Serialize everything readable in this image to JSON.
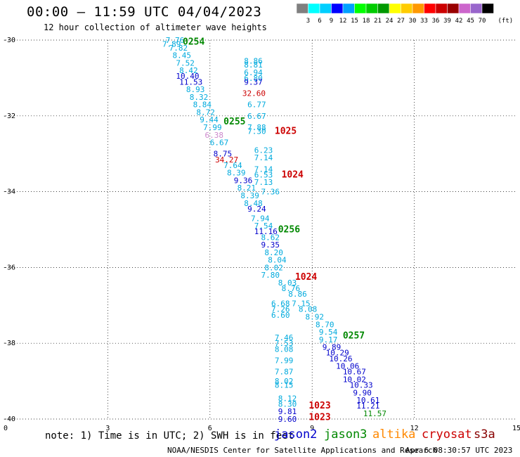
{
  "title": "00:00 – 11:59 UTC 04/04/2023",
  "subtitle": "12 hour collection of altimeter wave heights",
  "note": "note: 1) Time is in UTC; 2) SWH is in feet",
  "satellites": [
    {
      "name": "jason2",
      "color": "#0000cc"
    },
    {
      "name": "jason3",
      "color": "#008800"
    },
    {
      "name": "altika",
      "color": "#ff8800"
    },
    {
      "name": "cryosat",
      "color": "#cc0000"
    },
    {
      "name": "s3a",
      "color": "#880000"
    }
  ],
  "credit": "NOAA/NESDIS Center for Satellite Applications and Research",
  "timestamp": "Apr  6 08:30:57 UTC 2023",
  "colorbar": {
    "unit": "(ft)",
    "labels": [
      "3",
      "6",
      "9",
      "12",
      "15",
      "18",
      "21",
      "24",
      "27",
      "30",
      "33",
      "36",
      "39",
      "42",
      "45",
      "70"
    ],
    "colors": [
      "#7f7f7f",
      "#00ffff",
      "#00cfff",
      "#0000ff",
      "#00a0ff",
      "#00ff00",
      "#00cc00",
      "#009900",
      "#ffff00",
      "#ffcc00",
      "#ff9900",
      "#ff0000",
      "#cc0000",
      "#990000",
      "#cc66cc",
      "#9966cc",
      "#000000"
    ]
  },
  "chart_data": {
    "type": "scatter",
    "xlim": [
      0,
      15
    ],
    "ylim": [
      -40,
      -30
    ],
    "x_ticks": [
      0,
      3,
      6,
      9,
      12,
      15
    ],
    "y_ticks": [
      -30,
      -32,
      -34,
      -36,
      -38,
      -40
    ],
    "grid": true,
    "series": [
      {
        "name": "swh_labels",
        "points": [
          {
            "x": 4.7,
            "y": -30.0,
            "label": "7.76",
            "color": "#00aadd"
          },
          {
            "x": 4.6,
            "y": -30.1,
            "label": "7.89",
            "color": "#00aadd"
          },
          {
            "x": 4.8,
            "y": -30.2,
            "label": "7.82",
            "color": "#00aadd"
          },
          {
            "x": 4.9,
            "y": -30.4,
            "label": "8.45",
            "color": "#00aadd"
          },
          {
            "x": 5.0,
            "y": -30.6,
            "label": "7.52",
            "color": "#00aadd"
          },
          {
            "x": 5.1,
            "y": -30.8,
            "label": "8.42",
            "color": "#00aadd"
          },
          {
            "x": 5.0,
            "y": -30.95,
            "label": "10.40",
            "color": "#0000cc"
          },
          {
            "x": 5.1,
            "y": -31.1,
            "label": "11.53",
            "color": "#0000cc"
          },
          {
            "x": 5.3,
            "y": -31.3,
            "label": "8.93",
            "color": "#00aadd"
          },
          {
            "x": 5.4,
            "y": -31.5,
            "label": "8.32",
            "color": "#00aadd"
          },
          {
            "x": 5.5,
            "y": -31.7,
            "label": "8.84",
            "color": "#00aadd"
          },
          {
            "x": 5.6,
            "y": -31.9,
            "label": "8.72",
            "color": "#00aadd"
          },
          {
            "x": 5.7,
            "y": -32.1,
            "label": "9.44",
            "color": "#00aadd"
          },
          {
            "x": 5.8,
            "y": -32.3,
            "label": "7.99",
            "color": "#00aadd"
          },
          {
            "x": 5.85,
            "y": -32.5,
            "label": "6.38",
            "color": "#cc88cc"
          },
          {
            "x": 6.0,
            "y": -32.7,
            "label": "6.67",
            "color": "#00aadd"
          },
          {
            "x": 6.1,
            "y": -33.0,
            "label": "8.75",
            "color": "#0000cc"
          },
          {
            "x": 6.15,
            "y": -33.15,
            "label": "34.27",
            "color": "#cc0000"
          },
          {
            "x": 6.4,
            "y": -33.3,
            "label": "7.64",
            "color": "#00aadd"
          },
          {
            "x": 6.5,
            "y": -33.5,
            "label": "8.39",
            "color": "#00aadd"
          },
          {
            "x": 6.7,
            "y": -33.7,
            "label": "9.36",
            "color": "#0000cc"
          },
          {
            "x": 6.8,
            "y": -33.9,
            "label": "8.21",
            "color": "#00aadd"
          },
          {
            "x": 6.9,
            "y": -34.1,
            "label": "8.39",
            "color": "#00aadd"
          },
          {
            "x": 7.0,
            "y": -34.3,
            "label": "8.48",
            "color": "#00aadd"
          },
          {
            "x": 7.1,
            "y": -34.45,
            "label": "9.24",
            "color": "#0000cc"
          },
          {
            "x": 7.2,
            "y": -34.7,
            "label": "7.94",
            "color": "#00aadd"
          },
          {
            "x": 7.3,
            "y": -34.9,
            "label": "7.54",
            "color": "#00aadd"
          },
          {
            "x": 7.3,
            "y": -35.05,
            "label": "11.16",
            "color": "#0000cc"
          },
          {
            "x": 7.5,
            "y": -35.2,
            "label": "8.62",
            "color": "#00aadd"
          },
          {
            "x": 7.5,
            "y": -35.4,
            "label": "9.35",
            "color": "#0000cc"
          },
          {
            "x": 7.6,
            "y": -35.6,
            "label": "8.20",
            "color": "#00aadd"
          },
          {
            "x": 7.7,
            "y": -35.8,
            "label": "8.04",
            "color": "#00aadd"
          },
          {
            "x": 7.6,
            "y": -36.0,
            "label": "8.02",
            "color": "#00aadd"
          },
          {
            "x": 7.5,
            "y": -36.2,
            "label": "7.80",
            "color": "#00aadd"
          },
          {
            "x": 8.0,
            "y": -36.4,
            "label": "8.03",
            "color": "#00aadd"
          },
          {
            "x": 8.1,
            "y": -36.55,
            "label": "8.76",
            "color": "#00aadd"
          },
          {
            "x": 8.3,
            "y": -36.7,
            "label": "8.86",
            "color": "#00aadd"
          },
          {
            "x": 7.8,
            "y": -36.95,
            "label": "6.68",
            "color": "#00aadd"
          },
          {
            "x": 8.4,
            "y": -36.95,
            "label": "7.15",
            "color": "#00aadd"
          },
          {
            "x": 7.8,
            "y": -37.1,
            "label": "7.26",
            "color": "#00aadd"
          },
          {
            "x": 8.6,
            "y": -37.1,
            "label": "8.08",
            "color": "#00aadd"
          },
          {
            "x": 7.8,
            "y": -37.25,
            "label": "6.60",
            "color": "#00aadd"
          },
          {
            "x": 8.8,
            "y": -37.3,
            "label": "8.92",
            "color": "#00aadd"
          },
          {
            "x": 9.1,
            "y": -37.5,
            "label": "8.70",
            "color": "#00aadd"
          },
          {
            "x": 9.2,
            "y": -37.7,
            "label": "9.54",
            "color": "#00aadd"
          },
          {
            "x": 9.2,
            "y": -37.9,
            "label": "9.17",
            "color": "#00aadd"
          },
          {
            "x": 7.9,
            "y": -37.85,
            "label": "7.46",
            "color": "#00aadd"
          },
          {
            "x": 7.9,
            "y": -38.0,
            "label": "7.53",
            "color": "#00aadd"
          },
          {
            "x": 7.9,
            "y": -38.15,
            "label": "8.08",
            "color": "#00aadd"
          },
          {
            "x": 9.3,
            "y": -38.1,
            "label": "9.89",
            "color": "#0000cc"
          },
          {
            "x": 9.4,
            "y": -38.25,
            "label": "10.29",
            "color": "#0000cc"
          },
          {
            "x": 9.5,
            "y": -38.4,
            "label": "10.26",
            "color": "#0000cc"
          },
          {
            "x": 7.9,
            "y": -38.45,
            "label": "7.99",
            "color": "#00aadd"
          },
          {
            "x": 9.7,
            "y": -38.6,
            "label": "10.06",
            "color": "#0000cc"
          },
          {
            "x": 7.9,
            "y": -38.75,
            "label": "7.87",
            "color": "#00aadd"
          },
          {
            "x": 9.9,
            "y": -38.75,
            "label": "10.67",
            "color": "#0000cc"
          },
          {
            "x": 7.9,
            "y": -39.0,
            "label": "8.02",
            "color": "#00aadd"
          },
          {
            "x": 9.9,
            "y": -38.95,
            "label": "10.02",
            "color": "#0000cc"
          },
          {
            "x": 7.9,
            "y": -39.1,
            "label": "8.15",
            "color": "#00aadd"
          },
          {
            "x": 10.1,
            "y": -39.1,
            "label": "10.33",
            "color": "#0000cc"
          },
          {
            "x": 10.2,
            "y": -39.3,
            "label": "9.90",
            "color": "#0000cc"
          },
          {
            "x": 8.0,
            "y": -39.45,
            "label": "8.12",
            "color": "#00aadd"
          },
          {
            "x": 10.3,
            "y": -39.5,
            "label": "10.61",
            "color": "#0000cc"
          },
          {
            "x": 8.0,
            "y": -39.6,
            "label": "8.30",
            "color": "#00aadd"
          },
          {
            "x": 10.3,
            "y": -39.65,
            "label": "11.21",
            "color": "#0000cc"
          },
          {
            "x": 8.0,
            "y": -39.8,
            "label": "9.81",
            "color": "#0000cc"
          },
          {
            "x": 10.5,
            "y": -39.85,
            "label": "11.57",
            "color": "#008800"
          },
          {
            "x": 8.0,
            "y": -40.0,
            "label": "9.60",
            "color": "#0000cc"
          },
          {
            "x": 7.0,
            "y": -30.55,
            "label": "8.86",
            "color": "#00aadd"
          },
          {
            "x": 7.0,
            "y": -30.65,
            "label": "8.81",
            "color": "#00aadd"
          },
          {
            "x": 7.0,
            "y": -30.85,
            "label": "6.94",
            "color": "#00aadd"
          },
          {
            "x": 7.0,
            "y": -31.0,
            "label": "6.80",
            "color": "#00aadd"
          },
          {
            "x": 7.0,
            "y": -31.1,
            "label": "9.37",
            "color": "#0000cc"
          },
          {
            "x": 6.95,
            "y": -31.4,
            "label": "32.60",
            "color": "#cc0000"
          },
          {
            "x": 7.1,
            "y": -31.7,
            "label": "6.77",
            "color": "#00aadd"
          },
          {
            "x": 7.1,
            "y": -32.0,
            "label": "6.67",
            "color": "#00aadd"
          },
          {
            "x": 7.1,
            "y": -32.3,
            "label": "7.88",
            "color": "#00aadd"
          },
          {
            "x": 7.1,
            "y": -32.4,
            "label": "7.30",
            "color": "#00aadd"
          },
          {
            "x": 7.3,
            "y": -32.9,
            "label": "6.23",
            "color": "#00aadd"
          },
          {
            "x": 7.3,
            "y": -33.1,
            "label": "7.14",
            "color": "#00aadd"
          },
          {
            "x": 7.3,
            "y": -33.4,
            "label": "7.14",
            "color": "#00aadd"
          },
          {
            "x": 7.3,
            "y": -33.55,
            "label": "6.53",
            "color": "#00aadd"
          },
          {
            "x": 7.3,
            "y": -33.75,
            "label": "7.13",
            "color": "#00aadd"
          },
          {
            "x": 7.5,
            "y": -34.0,
            "label": "7.36",
            "color": "#00aadd"
          }
        ]
      },
      {
        "name": "pass_labels",
        "points": [
          {
            "x": 5.2,
            "y": -30.05,
            "label": "0254",
            "color": "#008800"
          },
          {
            "x": 6.4,
            "y": -32.15,
            "label": "0255",
            "color": "#008800"
          },
          {
            "x": 7.9,
            "y": -32.4,
            "label": "1025",
            "color": "#cc0000"
          },
          {
            "x": 8.1,
            "y": -33.55,
            "label": "1024",
            "color": "#cc0000"
          },
          {
            "x": 8.0,
            "y": -35.0,
            "label": "0256",
            "color": "#008800"
          },
          {
            "x": 8.5,
            "y": -36.25,
            "label": "1024",
            "color": "#cc0000"
          },
          {
            "x": 9.9,
            "y": -37.8,
            "label": "0257",
            "color": "#008800"
          },
          {
            "x": 8.9,
            "y": -39.65,
            "label": "1023",
            "color": "#cc0000"
          },
          {
            "x": 8.9,
            "y": -39.95,
            "label": "1023",
            "color": "#cc0000"
          }
        ]
      }
    ]
  }
}
